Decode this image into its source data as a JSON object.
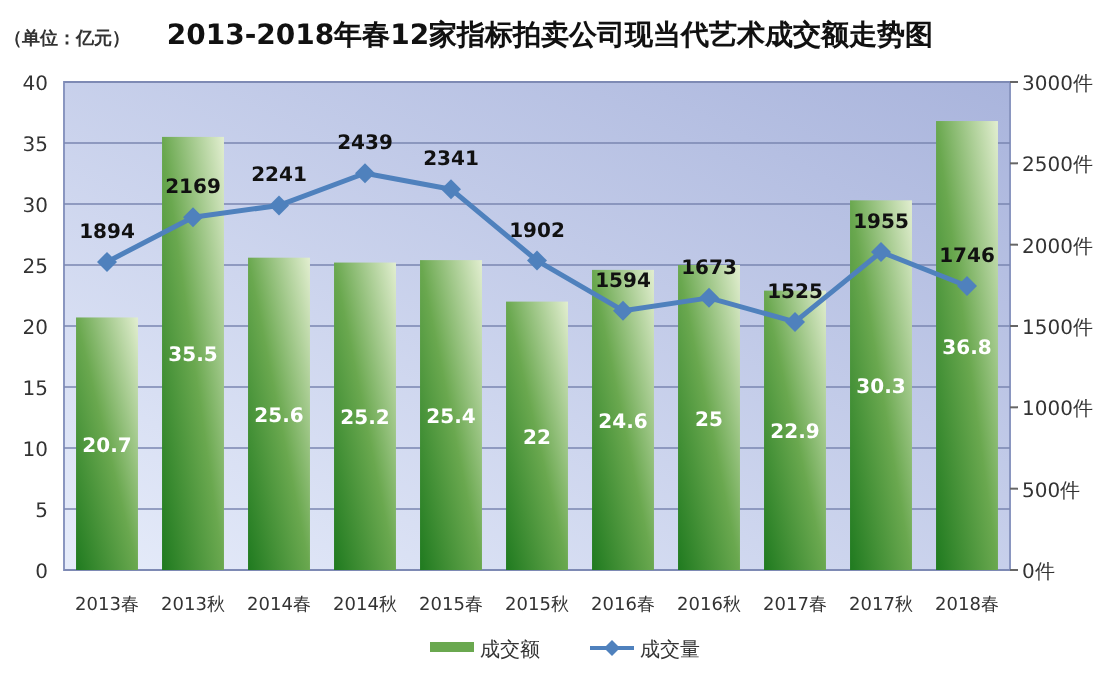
{
  "chart_data": {
    "type": "bar",
    "title": "2013-2018年春12家指标拍卖公司现当代艺术成交额走势图",
    "ylabel": "（单位：亿元）",
    "categories": [
      "2013春",
      "2013秋",
      "2014春",
      "2014秋",
      "2015春",
      "2015秋",
      "2016春",
      "2016秋",
      "2017春",
      "2017秋",
      "2018春"
    ],
    "series": [
      {
        "name": "成交额",
        "color": "#6aa84f",
        "values": [
          20.7,
          35.5,
          25.6,
          25.2,
          25.4,
          22,
          24.6,
          25,
          22.9,
          30.3,
          36.8
        ]
      },
      {
        "name": "成交量",
        "type": "line",
        "axis": "y2",
        "color": "#4f81bd",
        "marker": "diamond",
        "values": [
          1894,
          2169,
          2241,
          2439,
          2341,
          1902,
          1594,
          1673,
          1525,
          1955,
          1746
        ]
      }
    ],
    "ylim": [
      0,
      40
    ],
    "yticks": [
      0,
      5,
      10,
      15,
      20,
      25,
      30,
      35,
      40
    ],
    "y2lim": [
      0,
      3000
    ],
    "y2ticks": [
      {
        "value": 0,
        "label": "0件"
      },
      {
        "value": 500,
        "label": "500件"
      },
      {
        "value": 1000,
        "label": "1000件"
      },
      {
        "value": 1500,
        "label": "1500件"
      },
      {
        "value": 2000,
        "label": "2000件"
      },
      {
        "value": 2500,
        "label": "2500件"
      },
      {
        "value": 3000,
        "label": "3000件"
      }
    ],
    "grid": "y",
    "legend": "bottom",
    "data_labels": true
  }
}
